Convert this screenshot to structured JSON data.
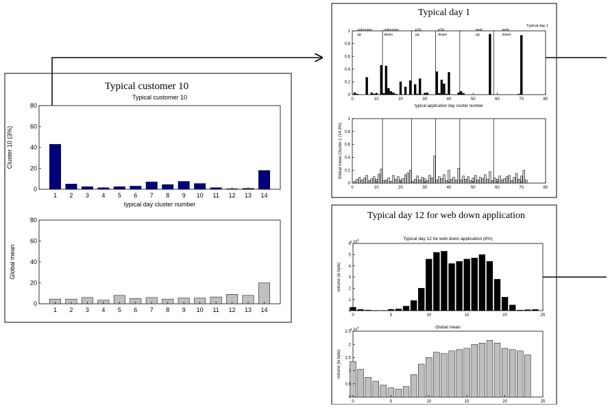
{
  "panels": {
    "customer": {
      "title": "Typical customer 10"
    },
    "day1": {
      "title": "Typical day 1"
    },
    "day12": {
      "title": "Typical day 12 for web down application"
    }
  },
  "chart_data": [
    {
      "id": "cust_top",
      "type": "bar",
      "title": "Typical customer 10",
      "xlabel": "typical day cluster number",
      "ylabel": "Cluster 10 (3%)",
      "categories": [
        "1",
        "2",
        "3",
        "4",
        "5",
        "6",
        "7",
        "8",
        "9",
        "10",
        "11",
        "12",
        "13",
        "14"
      ],
      "values": [
        43,
        5,
        2.5,
        1.5,
        2.5,
        3,
        7,
        4.5,
        7.5,
        5.5,
        1.5,
        0.5,
        0.8,
        18
      ],
      "ylim": [
        0,
        80
      ],
      "yticks": [
        0,
        20,
        40,
        60,
        80
      ],
      "bar_color": "#00007f"
    },
    {
      "id": "cust_bottom",
      "type": "bar",
      "title": "",
      "xlabel": "",
      "ylabel": "Global mean",
      "categories": [
        "1",
        "2",
        "3",
        "4",
        "5",
        "6",
        "7",
        "8",
        "9",
        "10",
        "11",
        "12",
        "13",
        "14"
      ],
      "values": [
        4.5,
        4.5,
        6,
        3.5,
        8,
        5,
        6,
        4.5,
        5.5,
        5.5,
        6.5,
        9,
        8,
        20
      ],
      "ylim": [
        0,
        80
      ],
      "yticks": [
        0,
        20,
        40,
        60,
        80
      ],
      "bar_color": "#bfbfbf"
    },
    {
      "id": "day1_top",
      "type": "bar",
      "title": "Typical day 1",
      "xlabel": "typical application day cluster number",
      "ylabel": "",
      "x": [
        1,
        2,
        3,
        4,
        5,
        6,
        7,
        8,
        9,
        10,
        11,
        12,
        13,
        14,
        15,
        16,
        17,
        18,
        19,
        20,
        21,
        22,
        23,
        24,
        25,
        26,
        27,
        28,
        29,
        30,
        31,
        32,
        33,
        34,
        35,
        36,
        37,
        38,
        39,
        40,
        41,
        42,
        43,
        44,
        45,
        46,
        47,
        48,
        49,
        50,
        51,
        52,
        53,
        54,
        55,
        56,
        57,
        58,
        59,
        60,
        61,
        62,
        63,
        64,
        65,
        66,
        67,
        68,
        69,
        70,
        71,
        72
      ],
      "values": [
        0.03,
        0.01,
        0,
        0,
        0,
        0.27,
        0,
        0.03,
        0.01,
        0.02,
        0,
        0.46,
        0.02,
        0.45,
        0.1,
        0.05,
        0.03,
        0.01,
        0,
        0.2,
        0,
        0.12,
        0,
        0.22,
        0,
        0.16,
        0.01,
        0.25,
        0,
        0.02,
        0.03,
        0,
        0,
        0,
        0.36,
        0.02,
        0.23,
        0.17,
        0.01,
        0.35,
        0,
        0,
        0,
        0.03,
        0.05,
        0.02,
        0,
        0,
        0,
        0,
        0,
        0,
        0,
        0,
        0,
        0,
        0.95,
        0,
        0,
        0,
        0,
        0,
        0,
        0,
        0,
        0,
        0,
        0,
        0.01,
        0.93,
        0,
        0
      ],
      "xlim": [
        0,
        80
      ],
      "ylim": [
        0,
        1
      ],
      "xticks": [
        0,
        10,
        20,
        30,
        40,
        50,
        60,
        70,
        80
      ],
      "yticks": [
        0,
        0.2,
        0.4,
        0.6,
        0.8,
        1
      ],
      "vlines": [
        12.5,
        24.5,
        34.5,
        44.5,
        58.5
      ],
      "group_labels": [
        {
          "x": 2,
          "lines": [
            "unknown",
            "up"
          ]
        },
        {
          "x": 13,
          "lines": [
            "unknown",
            "down"
          ]
        },
        {
          "x": 26,
          "lines": [
            "p2p",
            "up"
          ]
        },
        {
          "x": 35.5,
          "lines": [
            "p2p",
            "down"
          ]
        },
        {
          "x": 51,
          "lines": [
            "web",
            "up"
          ]
        },
        {
          "x": 62,
          "lines": [
            "web",
            "down"
          ]
        }
      ],
      "annotation": "Typical day 1",
      "bar_color": "#000000"
    },
    {
      "id": "day1_bottom",
      "type": "bar",
      "title": "",
      "xlabel": "",
      "ylabel": "Global mean Cluster 1 (14.3%)",
      "x": [
        1,
        2,
        3,
        4,
        5,
        6,
        7,
        8,
        9,
        10,
        11,
        12,
        13,
        14,
        15,
        16,
        17,
        18,
        19,
        20,
        21,
        22,
        23,
        24,
        25,
        26,
        27,
        28,
        29,
        30,
        31,
        32,
        33,
        34,
        35,
        36,
        37,
        38,
        39,
        40,
        41,
        42,
        43,
        44,
        45,
        46,
        47,
        48,
        49,
        50,
        51,
        52,
        53,
        54,
        55,
        56,
        57,
        58,
        59,
        60,
        61,
        62,
        63,
        64,
        65,
        66,
        67,
        68,
        69,
        70,
        71,
        72
      ],
      "values": [
        0.03,
        0.06,
        0.09,
        0.05,
        0.08,
        0.12,
        0.04,
        0.07,
        0.1,
        0.06,
        0.14,
        0.22,
        0.04,
        0.05,
        0.08,
        0.03,
        0.12,
        0.06,
        0.1,
        0.05,
        0.07,
        0.13,
        0.16,
        0.2,
        0.03,
        0.06,
        0.11,
        0.05,
        0.09,
        0.07,
        0.04,
        0.12,
        0.08,
        0.42,
        0.05,
        0.1,
        0.07,
        0.13,
        0.04,
        0.2,
        0.06,
        0.09,
        0.05,
        0.23,
        0.05,
        0.11,
        0.06,
        0.1,
        0.04,
        0.08,
        0.12,
        0.05,
        0.09,
        0.07,
        0.13,
        0.06,
        0.18,
        0.04,
        0.08,
        0.06,
        0.11,
        0.05,
        0.07,
        0.1,
        0.12,
        0.04,
        0.09,
        0.15,
        0.06,
        0.11,
        0.2,
        0.05
      ],
      "xlim": [
        0,
        80
      ],
      "ylim": [
        0,
        1
      ],
      "xticks": [
        0,
        10,
        20,
        30,
        40,
        50,
        60,
        70,
        80
      ],
      "yticks": [
        0,
        0.2,
        0.4,
        0.6,
        0.8,
        1
      ],
      "vlines": [
        12.5,
        24.5,
        34.5,
        44.5,
        58.5
      ],
      "bar_color": "#cfcfcf"
    },
    {
      "id": "day12_top",
      "type": "bar",
      "title": "Typical day 12 for  web down application (8%)",
      "xlabel": "",
      "ylabel": "volume (in byte)",
      "multiplier": "x 10",
      "multiplier_exp": "6",
      "x": [
        0,
        1,
        2,
        3,
        4,
        5,
        6,
        7,
        8,
        9,
        10,
        11,
        12,
        13,
        14,
        15,
        16,
        17,
        18,
        19,
        20,
        21,
        22,
        23,
        24
      ],
      "values": [
        0.3,
        0.1,
        0.05,
        0.02,
        0.02,
        0.1,
        0.15,
        0.4,
        0.9,
        2.0,
        4.6,
        5.2,
        5.3,
        4.2,
        4.4,
        4.6,
        4.7,
        5.0,
        4.4,
        2.8,
        1.2,
        0.5,
        0.05,
        0.08,
        0.1
      ],
      "xlim": [
        0,
        25
      ],
      "ylim": [
        0,
        6
      ],
      "xticks": [
        0,
        5,
        10,
        15,
        20,
        25
      ],
      "yticks": [
        0,
        1,
        2,
        3,
        4,
        5,
        6
      ],
      "bar_color": "#000000"
    },
    {
      "id": "day12_bottom",
      "type": "bar",
      "title": "Global mean",
      "xlabel": "",
      "ylabel": "volume (in byte)",
      "multiplier": "x 10",
      "multiplier_exp": "6",
      "x": [
        0,
        1,
        2,
        3,
        4,
        5,
        6,
        7,
        8,
        9,
        10,
        11,
        12,
        13,
        14,
        15,
        16,
        17,
        18,
        19,
        20,
        21,
        22,
        23,
        24
      ],
      "values": [
        1.35,
        1.05,
        0.75,
        0.6,
        0.45,
        0.35,
        0.3,
        0.4,
        0.85,
        1.25,
        1.5,
        1.7,
        1.65,
        1.75,
        1.8,
        1.85,
        2.0,
        2.05,
        2.15,
        2.05,
        1.85,
        1.8,
        1.75,
        1.6,
        0
      ],
      "xlim": [
        0,
        25
      ],
      "ylim": [
        0,
        2.5
      ],
      "xticks": [
        0,
        5,
        10,
        15,
        20,
        25
      ],
      "yticks": [
        0,
        0.5,
        1,
        1.5,
        2,
        2.5
      ],
      "bar_color": "#bfbfbf"
    }
  ]
}
